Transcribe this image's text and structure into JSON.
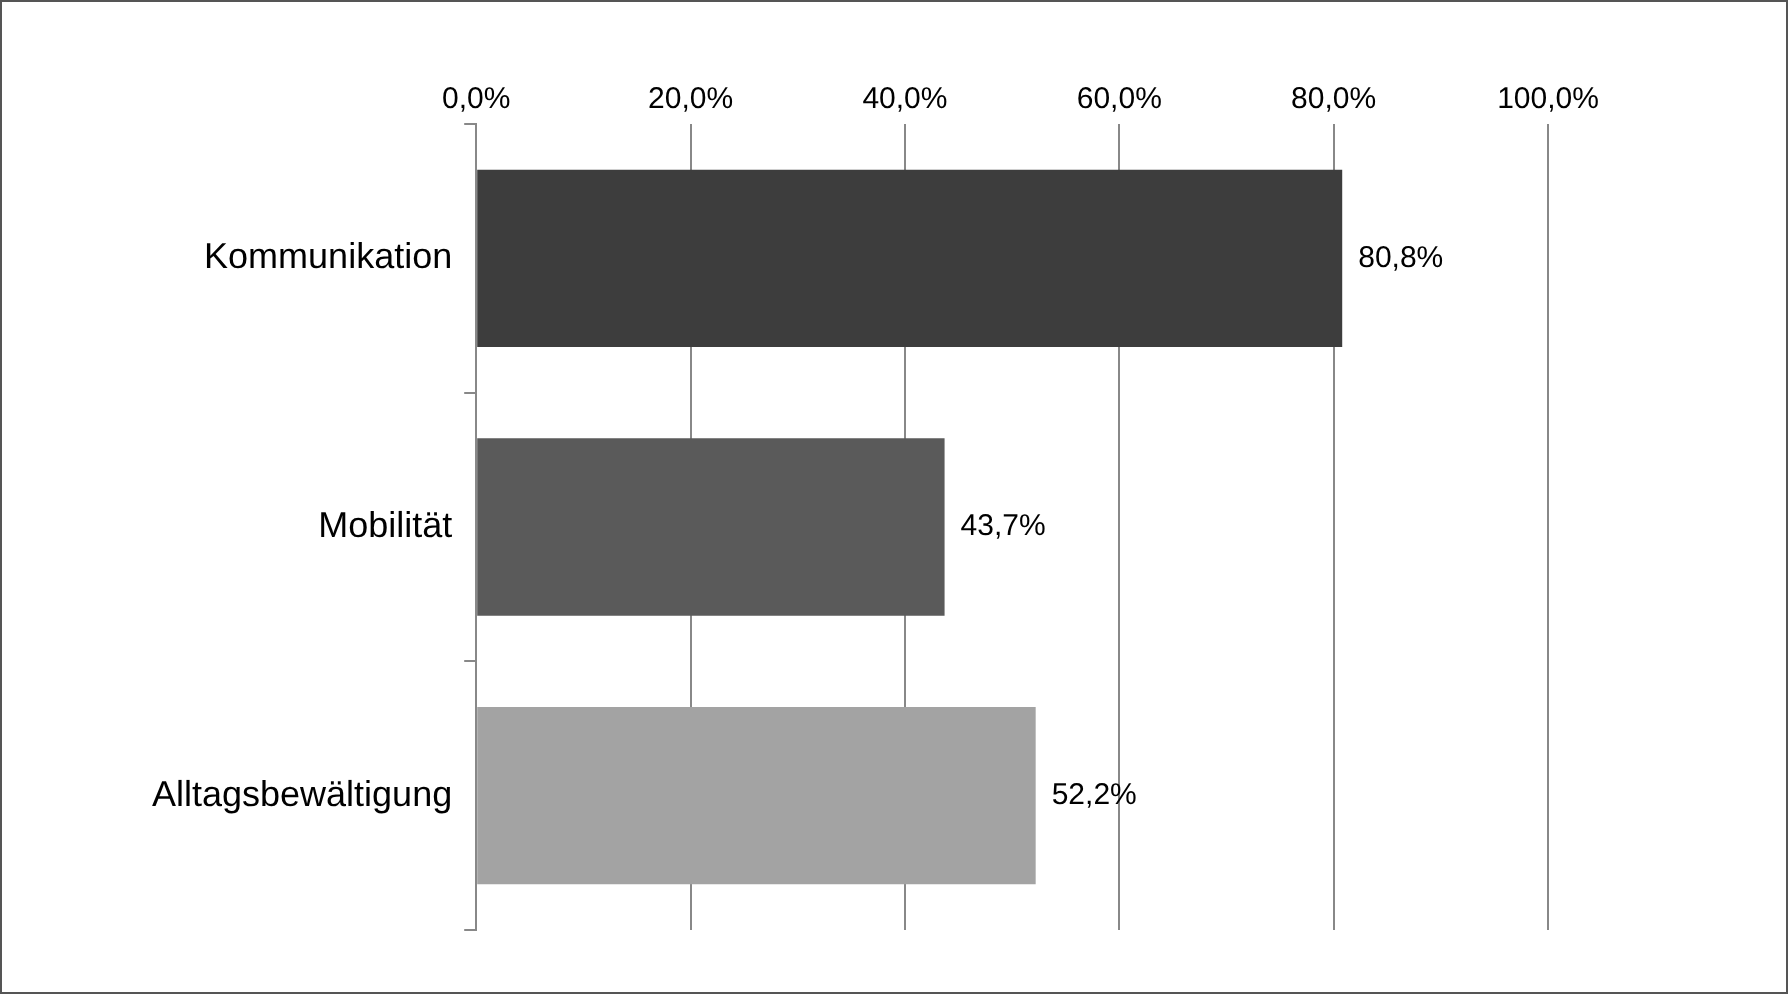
{
  "chart_data": {
    "type": "bar",
    "orientation": "horizontal",
    "categories": [
      "Kommunikation",
      "Mobilität",
      "Alltagsbewältigung"
    ],
    "values": [
      80.8,
      43.7,
      52.2
    ],
    "colors": [
      "#3d3d3d",
      "#5a5a5a",
      "#a3a3a3"
    ],
    "value_labels": [
      "80,8%",
      "43,7%",
      "52,2%"
    ],
    "xlim": [
      0,
      100
    ],
    "xticks": [
      {
        "value": 0,
        "label": "0,0%"
      },
      {
        "value": 20,
        "label": "20,0%"
      },
      {
        "value": 40,
        "label": "40,0%"
      },
      {
        "value": 60,
        "label": "60,0%"
      },
      {
        "value": 80,
        "label": "80,0%"
      },
      {
        "value": 100,
        "label": "100,0%"
      }
    ],
    "grid": "x",
    "legend": false
  }
}
